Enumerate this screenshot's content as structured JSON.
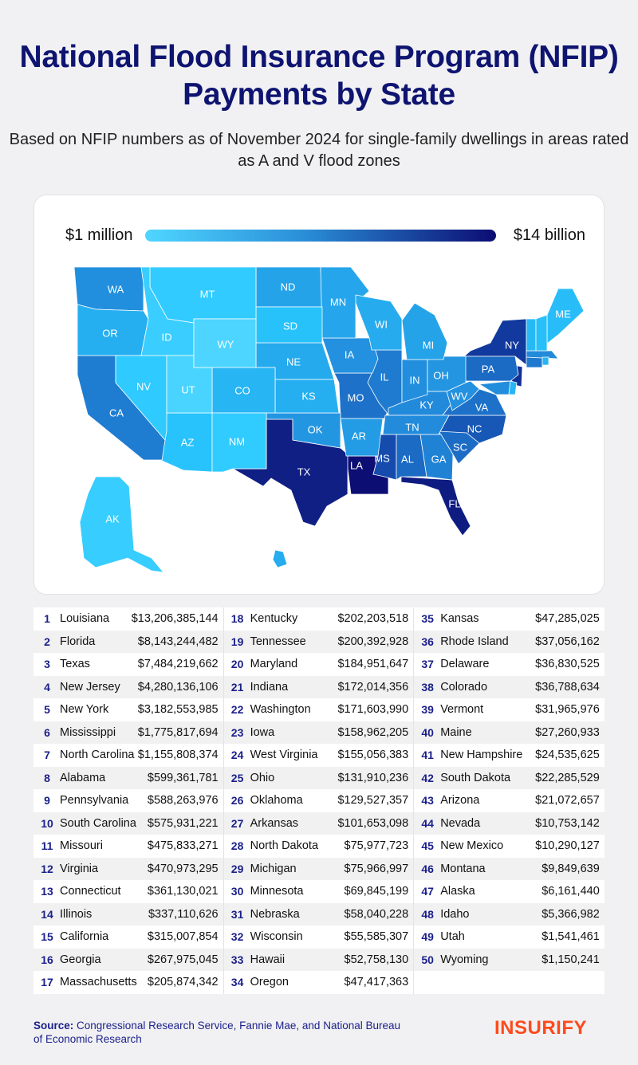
{
  "title": "National Flood Insurance Program (NFIP) Payments by State",
  "subtitle": "Based on NFIP numbers as of November 2024 for single-family dwellings in areas rated as A and V flood zones",
  "legend": {
    "min_label": "$1 million",
    "max_label": "$14 billion",
    "min_color": "#4fd6ff",
    "max_color": "#0c0c72"
  },
  "chart_data": {
    "type": "choropleth",
    "title": "National Flood Insurance Program (NFIP) Payments by State",
    "scale": {
      "min": 1000000,
      "max": 14000000000,
      "min_label": "$1 million",
      "max_label": "$14 billion"
    },
    "states": [
      {
        "abbr": "LA",
        "value": 13206385144
      },
      {
        "abbr": "FL",
        "value": 8143244482
      },
      {
        "abbr": "TX",
        "value": 7484219662
      },
      {
        "abbr": "NJ",
        "value": 4280136106
      },
      {
        "abbr": "NY",
        "value": 3182553985
      },
      {
        "abbr": "MS",
        "value": 1775817694
      },
      {
        "abbr": "NC",
        "value": 1155808374
      },
      {
        "abbr": "AL",
        "value": 599361781
      },
      {
        "abbr": "PA",
        "value": 588263976
      },
      {
        "abbr": "SC",
        "value": 575931221
      },
      {
        "abbr": "MO",
        "value": 475833271
      },
      {
        "abbr": "VA",
        "value": 470973295
      },
      {
        "abbr": "CT",
        "value": 361130021
      },
      {
        "abbr": "IL",
        "value": 337110626
      },
      {
        "abbr": "CA",
        "value": 315007854
      },
      {
        "abbr": "GA",
        "value": 267975045
      },
      {
        "abbr": "MA",
        "value": 205874342
      },
      {
        "abbr": "KY",
        "value": 202203518
      },
      {
        "abbr": "TN",
        "value": 200392928
      },
      {
        "abbr": "MD",
        "value": 184951647
      },
      {
        "abbr": "IN",
        "value": 172014356
      },
      {
        "abbr": "WA",
        "value": 171603990
      },
      {
        "abbr": "IA",
        "value": 158962205
      },
      {
        "abbr": "WV",
        "value": 155056383
      },
      {
        "abbr": "OH",
        "value": 131910236
      },
      {
        "abbr": "OK",
        "value": 129527357
      },
      {
        "abbr": "AR",
        "value": 101653098
      },
      {
        "abbr": "ND",
        "value": 75977723
      },
      {
        "abbr": "MI",
        "value": 75966997
      },
      {
        "abbr": "MN",
        "value": 69845199
      },
      {
        "abbr": "NE",
        "value": 58040228
      },
      {
        "abbr": "WI",
        "value": 55585307
      },
      {
        "abbr": "HI",
        "value": 52758130
      },
      {
        "abbr": "OR",
        "value": 47417363
      },
      {
        "abbr": "KS",
        "value": 47285025
      },
      {
        "abbr": "RI",
        "value": 37056162
      },
      {
        "abbr": "DE",
        "value": 36830525
      },
      {
        "abbr": "CO",
        "value": 36788634
      },
      {
        "abbr": "VT",
        "value": 31965976
      },
      {
        "abbr": "ME",
        "value": 27260933
      },
      {
        "abbr": "NH",
        "value": 24535625
      },
      {
        "abbr": "SD",
        "value": 22285529
      },
      {
        "abbr": "AZ",
        "value": 21072657
      },
      {
        "abbr": "NV",
        "value": 10753142
      },
      {
        "abbr": "NM",
        "value": 10290127
      },
      {
        "abbr": "MT",
        "value": 9849639
      },
      {
        "abbr": "AK",
        "value": 6161440
      },
      {
        "abbr": "ID",
        "value": 5366982
      },
      {
        "abbr": "UT",
        "value": 1541461
      },
      {
        "abbr": "WY",
        "value": 1150241
      }
    ]
  },
  "table": {
    "columns": [
      [
        {
          "rank": "1",
          "state": "Louisiana",
          "value": "$13,206,385,144"
        },
        {
          "rank": "2",
          "state": "Florida",
          "value": "$8,143,244,482"
        },
        {
          "rank": "3",
          "state": "Texas",
          "value": "$7,484,219,662"
        },
        {
          "rank": "4",
          "state": "New Jersey",
          "value": "$4,280,136,106"
        },
        {
          "rank": "5",
          "state": "New York",
          "value": "$3,182,553,985"
        },
        {
          "rank": "6",
          "state": "Mississippi",
          "value": "$1,775,817,694"
        },
        {
          "rank": "7",
          "state": "North Carolina",
          "value": "$1,155,808,374"
        },
        {
          "rank": "8",
          "state": "Alabama",
          "value": "$599,361,781"
        },
        {
          "rank": "9",
          "state": "Pennsylvania",
          "value": "$588,263,976"
        },
        {
          "rank": "10",
          "state": "South Carolina",
          "value": "$575,931,221"
        },
        {
          "rank": "11",
          "state": "Missouri",
          "value": "$475,833,271"
        },
        {
          "rank": "12",
          "state": "Virginia",
          "value": "$470,973,295"
        },
        {
          "rank": "13",
          "state": "Connecticut",
          "value": "$361,130,021"
        },
        {
          "rank": "14",
          "state": "Illinois",
          "value": "$337,110,626"
        },
        {
          "rank": "15",
          "state": "California",
          "value": "$315,007,854"
        },
        {
          "rank": "16",
          "state": "Georgia",
          "value": "$267,975,045"
        },
        {
          "rank": "17",
          "state": "Massachusetts",
          "value": "$205,874,342"
        }
      ],
      [
        {
          "rank": "18",
          "state": "Kentucky",
          "value": "$202,203,518"
        },
        {
          "rank": "19",
          "state": "Tennessee",
          "value": "$200,392,928"
        },
        {
          "rank": "20",
          "state": "Maryland",
          "value": "$184,951,647"
        },
        {
          "rank": "21",
          "state": "Indiana",
          "value": "$172,014,356"
        },
        {
          "rank": "22",
          "state": "Washington",
          "value": "$171,603,990"
        },
        {
          "rank": "23",
          "state": "Iowa",
          "value": "$158,962,205"
        },
        {
          "rank": "24",
          "state": "West Virginia",
          "value": "$155,056,383"
        },
        {
          "rank": "25",
          "state": "Ohio",
          "value": "$131,910,236"
        },
        {
          "rank": "26",
          "state": "Oklahoma",
          "value": "$129,527,357"
        },
        {
          "rank": "27",
          "state": "Arkansas",
          "value": "$101,653,098"
        },
        {
          "rank": "28",
          "state": "North Dakota",
          "value": "$75,977,723"
        },
        {
          "rank": "29",
          "state": "Michigan",
          "value": "$75,966,997"
        },
        {
          "rank": "30",
          "state": "Minnesota",
          "value": "$69,845,199"
        },
        {
          "rank": "31",
          "state": "Nebraska",
          "value": "$58,040,228"
        },
        {
          "rank": "32",
          "state": "Wisconsin",
          "value": "$55,585,307"
        },
        {
          "rank": "33",
          "state": "Hawaii",
          "value": "$52,758,130"
        },
        {
          "rank": "34",
          "state": "Oregon",
          "value": "$47,417,363"
        }
      ],
      [
        {
          "rank": "35",
          "state": "Kansas",
          "value": "$47,285,025"
        },
        {
          "rank": "36",
          "state": "Rhode Island",
          "value": "$37,056,162"
        },
        {
          "rank": "37",
          "state": "Delaware",
          "value": "$36,830,525"
        },
        {
          "rank": "38",
          "state": "Colorado",
          "value": "$36,788,634"
        },
        {
          "rank": "39",
          "state": "Vermont",
          "value": "$31,965,976"
        },
        {
          "rank": "40",
          "state": "Maine",
          "value": "$27,260,933"
        },
        {
          "rank": "41",
          "state": "New Hampshire",
          "value": "$24,535,625"
        },
        {
          "rank": "42",
          "state": "South Dakota",
          "value": "$22,285,529"
        },
        {
          "rank": "43",
          "state": "Arizona",
          "value": "$21,072,657"
        },
        {
          "rank": "44",
          "state": "Nevada",
          "value": "$10,753,142"
        },
        {
          "rank": "45",
          "state": "New Mexico",
          "value": "$10,290,127"
        },
        {
          "rank": "46",
          "state": "Montana",
          "value": "$9,849,639"
        },
        {
          "rank": "47",
          "state": "Alaska",
          "value": "$6,161,440"
        },
        {
          "rank": "48",
          "state": "Idaho",
          "value": "$5,366,982"
        },
        {
          "rank": "49",
          "state": "Utah",
          "value": "$1,541,461"
        },
        {
          "rank": "50",
          "state": "Wyoming",
          "value": "$1,150,241"
        }
      ]
    ]
  },
  "source": {
    "label": "Source:",
    "text": "Congressional Research Service, Fannie Mae, and National Bureau of Economic Research"
  },
  "logo": "INSURIFY"
}
